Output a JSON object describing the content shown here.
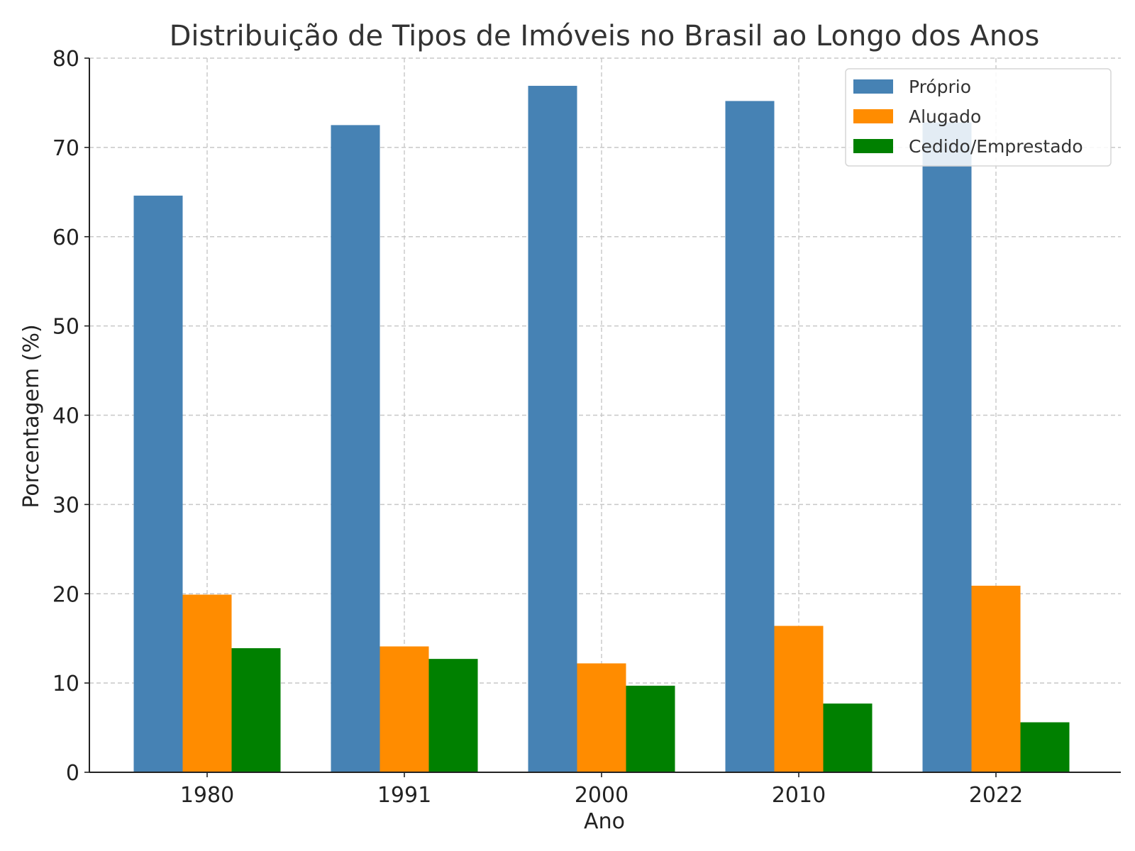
{
  "chart_data": {
    "type": "bar",
    "title": "Distribuição de Tipos de Imóveis no Brasil ao Longo dos Anos",
    "xlabel": "Ano",
    "ylabel": "Porcentagem (%)",
    "categories": [
      "1980",
      "1991",
      "2000",
      "2010",
      "2022"
    ],
    "series": [
      {
        "name": "Próprio",
        "color": "#4682b4",
        "values": [
          64.6,
          72.5,
          76.9,
          75.2,
          72.8
        ]
      },
      {
        "name": "Alugado",
        "color": "#ff8c00",
        "values": [
          19.9,
          14.1,
          12.2,
          16.4,
          20.9
        ]
      },
      {
        "name": "Cedido/Emprestado",
        "color": "#008000",
        "values": [
          13.9,
          12.7,
          9.7,
          7.7,
          5.6
        ]
      }
    ],
    "ylim": [
      0,
      80
    ],
    "yticks": [
      0,
      10,
      20,
      30,
      40,
      50,
      60,
      70,
      80
    ],
    "grid": true,
    "legend_position": "top-right"
  }
}
